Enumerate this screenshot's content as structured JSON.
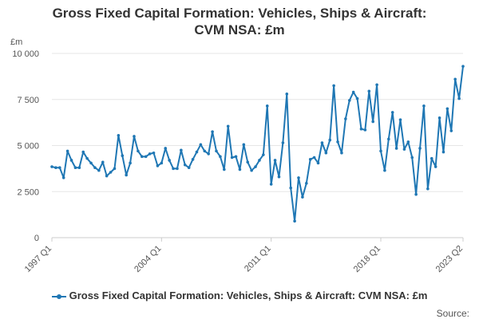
{
  "chart_data": {
    "type": "line",
    "title_line1": "Gross Fixed Capital Formation: Vehicles, Ships & Aircraft:",
    "title_line2": "CVM NSA: £m",
    "unit_label": "£m",
    "ylim": [
      0,
      10000
    ],
    "yticks": [
      "0",
      "2 500",
      "5 000",
      "7 500",
      "10 000"
    ],
    "ytick_values": [
      0,
      2500,
      5000,
      7500,
      10000
    ],
    "xtick_labels": [
      "1997 Q1",
      "2004 Q1",
      "2011 Q1",
      "2018 Q1",
      "2023 Q2"
    ],
    "xtick_index": [
      0,
      28,
      56,
      84,
      105
    ],
    "grid": true,
    "legend_position": "bottom",
    "source_label": "Source:",
    "series": [
      {
        "name": "Gross Fixed Capital Formation: Vehicles, Ships & Aircraft: CVM NSA: £m",
        "color": "#1f77b4",
        "start": "1997 Q1",
        "values": [
          3850,
          3800,
          3800,
          3250,
          4700,
          4200,
          3800,
          3800,
          4650,
          4300,
          4050,
          3800,
          3650,
          4100,
          3350,
          3550,
          3750,
          5550,
          4450,
          3400,
          4050,
          5500,
          4700,
          4400,
          4400,
          4550,
          4600,
          3900,
          4050,
          4850,
          4200,
          3750,
          3750,
          4750,
          3950,
          3800,
          4250,
          4650,
          5050,
          4700,
          4550,
          5750,
          4700,
          4400,
          3700,
          6050,
          4350,
          4400,
          3700,
          5050,
          4100,
          3650,
          3850,
          4200,
          4500,
          7150,
          2900,
          4200,
          3300,
          5150,
          7800,
          2700,
          900,
          3250,
          2200,
          2950,
          4250,
          4350,
          4050,
          5150,
          4600,
          5300,
          8250,
          5200,
          4600,
          6450,
          7450,
          7900,
          7550,
          5900,
          5850,
          7950,
          6300,
          8300,
          4700,
          3650,
          5350,
          6800,
          4850,
          6400,
          4800,
          5200,
          4350,
          2350,
          4850,
          7150,
          2650,
          4300,
          3850,
          6500,
          4650,
          7000,
          5800,
          8600,
          7550,
          9300
        ]
      }
    ]
  }
}
